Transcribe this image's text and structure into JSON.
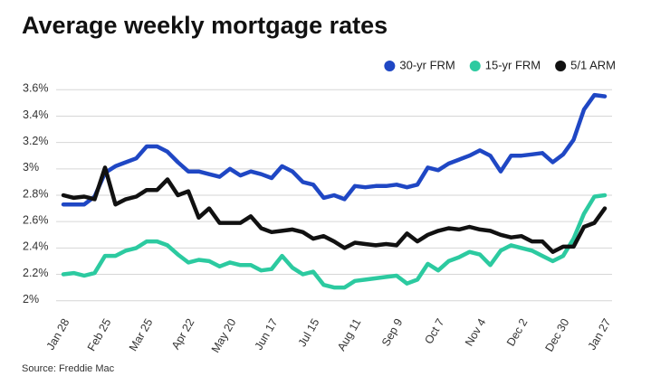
{
  "chart_data": {
    "type": "line",
    "title": "Average weekly mortgage rates",
    "source": "Source: Freddie Mac",
    "categories": [
      "Jan 28",
      null,
      null,
      null,
      "Feb 25",
      null,
      null,
      null,
      "Mar 25",
      null,
      null,
      null,
      "Apr 22",
      null,
      null,
      null,
      "May 20",
      null,
      null,
      null,
      "Jun 17",
      null,
      null,
      null,
      "Jul 15",
      null,
      null,
      null,
      "Aug 11",
      null,
      null,
      null,
      "Sep 9",
      null,
      null,
      null,
      "Oct 7",
      null,
      null,
      null,
      "Nov 4",
      null,
      null,
      null,
      "Dec 2",
      null,
      null,
      null,
      "Dec 30",
      null,
      null,
      null,
      "Jan 27"
    ],
    "series": [
      {
        "name": "30-yr FRM",
        "color": "#1f47c4",
        "values": [
          2.73,
          2.73,
          2.73,
          2.79,
          2.97,
          3.02,
          3.05,
          3.08,
          3.17,
          3.17,
          3.13,
          3.05,
          2.98,
          2.98,
          2.96,
          2.94,
          3.0,
          2.95,
          2.98,
          2.96,
          2.93,
          3.02,
          2.98,
          2.9,
          2.88,
          2.78,
          2.8,
          2.77,
          2.87,
          2.86,
          2.87,
          2.87,
          2.88,
          2.86,
          2.88,
          3.01,
          2.99,
          3.04,
          3.07,
          3.1,
          3.14,
          3.1,
          2.98,
          3.1,
          3.1,
          3.11,
          3.12,
          3.05,
          3.11,
          3.22,
          3.45,
          3.56,
          3.55
        ]
      },
      {
        "name": "15-yr FRM",
        "color": "#2ccaa0",
        "values": [
          2.2,
          2.21,
          2.19,
          2.21,
          2.34,
          2.34,
          2.38,
          2.4,
          2.45,
          2.45,
          2.42,
          2.35,
          2.29,
          2.31,
          2.3,
          2.26,
          2.29,
          2.27,
          2.27,
          2.23,
          2.24,
          2.34,
          2.25,
          2.2,
          2.22,
          2.12,
          2.1,
          2.1,
          2.15,
          2.16,
          2.17,
          2.18,
          2.19,
          2.13,
          2.16,
          2.28,
          2.23,
          2.3,
          2.33,
          2.37,
          2.35,
          2.27,
          2.38,
          2.42,
          2.4,
          2.38,
          2.34,
          2.3,
          2.34,
          2.47,
          2.66,
          2.79,
          2.8
        ]
      },
      {
        "name": "5/1 ARM",
        "color": "#111111",
        "values": [
          2.8,
          2.78,
          2.79,
          2.77,
          3.01,
          2.73,
          2.77,
          2.79,
          2.84,
          2.84,
          2.92,
          2.8,
          2.83,
          2.63,
          2.7,
          2.59,
          2.59,
          2.59,
          2.64,
          2.55,
          2.52,
          2.53,
          2.54,
          2.52,
          2.47,
          2.49,
          2.45,
          2.4,
          2.44,
          2.43,
          2.42,
          2.43,
          2.42,
          2.51,
          2.45,
          2.5,
          2.53,
          2.55,
          2.54,
          2.56,
          2.54,
          2.53,
          2.5,
          2.48,
          2.49,
          2.45,
          2.45,
          2.37,
          2.41,
          2.41,
          2.56,
          2.59,
          2.7
        ]
      }
    ],
    "ylim": [
      1.95,
      3.65
    ],
    "yticks": [
      {
        "value": 2,
        "label": "2%"
      },
      {
        "value": 2.2,
        "label": "2.2%"
      },
      {
        "value": 2.4,
        "label": "2.4%"
      },
      {
        "value": 2.6,
        "label": "2.6%"
      },
      {
        "value": 2.8,
        "label": "2.8%"
      },
      {
        "value": 3,
        "label": "3%"
      },
      {
        "value": 3.2,
        "label": "3.2%"
      },
      {
        "value": 3.4,
        "label": "3.4%"
      },
      {
        "value": 3.6,
        "label": "3.6%"
      }
    ],
    "grid": true,
    "legend": "top-right"
  }
}
